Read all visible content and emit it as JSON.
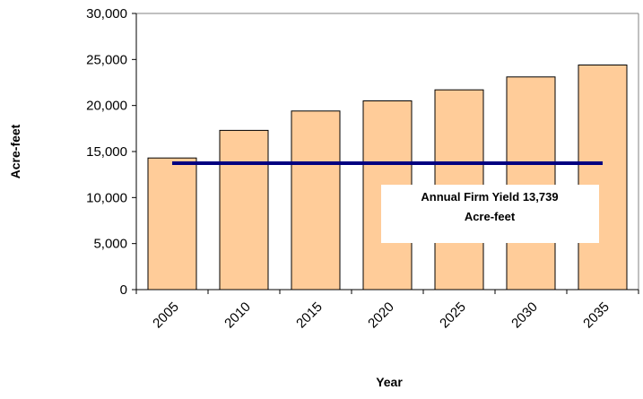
{
  "chart_data": {
    "type": "bar",
    "categories": [
      "2005",
      "2010",
      "2015",
      "2020",
      "2025",
      "2030",
      "2035"
    ],
    "series": [
      {
        "values": [
          14300,
          17300,
          19400,
          20500,
          21700,
          23100,
          24400
        ]
      }
    ],
    "reference_line": {
      "value": 13739,
      "annotation_line1": "Annual Firm Yield 13,739",
      "annotation_line2": "Acre-feet"
    },
    "xlabel": "Year",
    "ylabel": "Acre-feet",
    "ylim": [
      0,
      30000
    ],
    "yticks": [
      "0",
      "5,000",
      "10,000",
      "15,000",
      "20,000",
      "25,000",
      "30,000"
    ],
    "grid": false,
    "colors": {
      "bar_fill": "#FFCC99",
      "bar_stroke": "#000000",
      "reference_line": "#000080",
      "axis": "#000000",
      "frame": "#808080"
    }
  }
}
